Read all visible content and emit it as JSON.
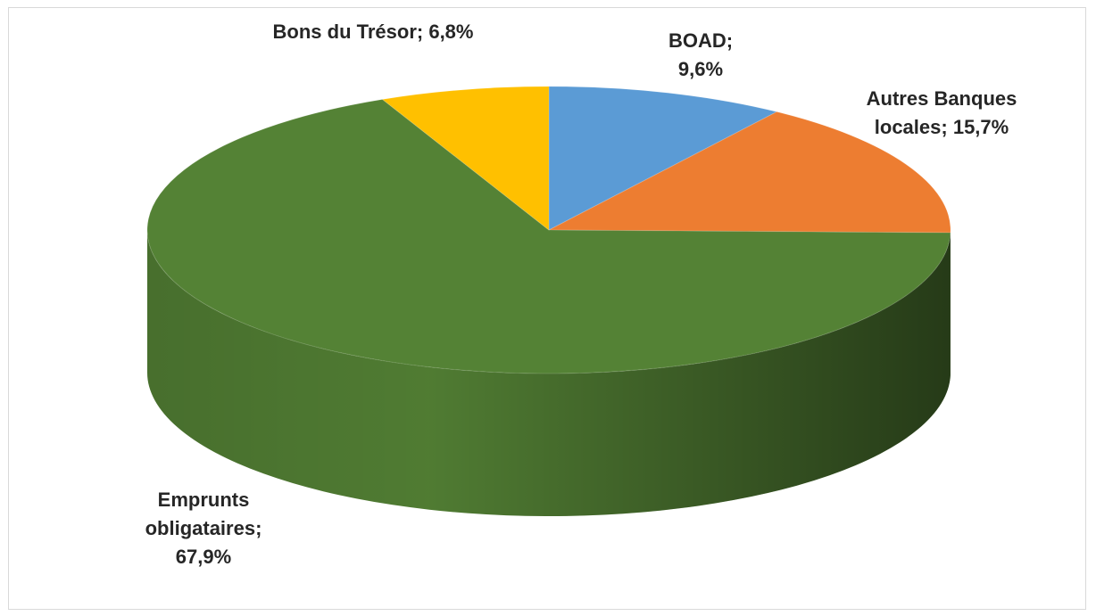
{
  "chart_data": {
    "type": "pie3d",
    "categories": [
      "BOAD",
      "Autres Banques locales",
      "Emprunts obligataires",
      "Bons du Trésor"
    ],
    "values": [
      9.6,
      15.7,
      67.9,
      6.8
    ],
    "value_labels": [
      "9,6%",
      "15,7%",
      "67,9%",
      "6,8%"
    ],
    "label_separator": ";",
    "colors": [
      "#5b9bd5",
      "#ed7d31",
      "#548235",
      "#ffc000"
    ]
  }
}
